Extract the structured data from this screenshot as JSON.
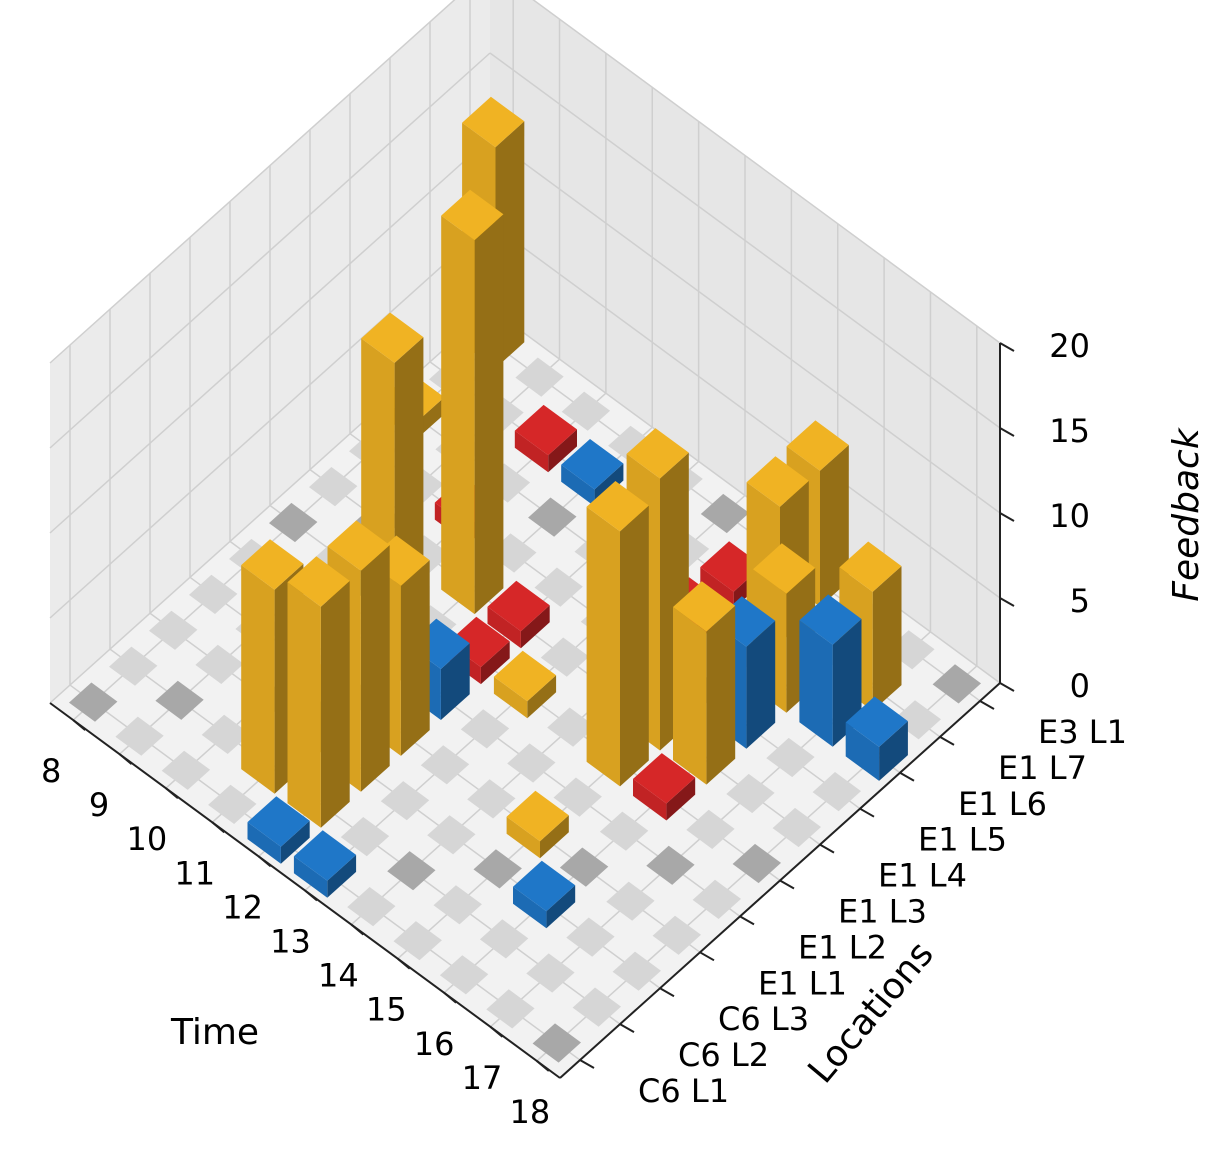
{
  "chart_data": {
    "type": "bar3d",
    "xlabel": "Time",
    "ylabel": "Locations",
    "zlabel": "Feedback",
    "x_ticks": [
      "8",
      "9",
      "10",
      "11",
      "12",
      "13",
      "14",
      "15",
      "16",
      "17",
      "18"
    ],
    "y_ticks": [
      "C6 L1",
      "C6 L2",
      "C6 L3",
      "E1 L1",
      "E1 L2",
      "E1 L3",
      "E1 L4",
      "E1 L5",
      "E1 L6",
      "E1 L7",
      "E3 L1"
    ],
    "z_ticks": [
      "0",
      "5",
      "10",
      "15",
      "20"
    ],
    "zlim": [
      0,
      20
    ],
    "grid": true,
    "colors": {
      "high": "#f0b323",
      "medium": "#1f77c8",
      "low": "#d62728",
      "zero_light": "#d6d6d6",
      "zero_dark": "#a8a8a8"
    },
    "bars": [
      {
        "time": 8,
        "location": "E3 L1",
        "value": 13,
        "category": "high"
      },
      {
        "time": 8,
        "location": "E1 L6",
        "value": 1,
        "category": "high"
      },
      {
        "time": 10,
        "location": "E1 L7",
        "value": 1,
        "category": "low"
      },
      {
        "time": 10,
        "location": "E1 L5",
        "value": 1,
        "category": "low"
      },
      {
        "time": 10,
        "location": "E1 L3",
        "value": 1,
        "category": "medium"
      },
      {
        "time": 11,
        "location": "E1 L7",
        "value": 1,
        "category": "medium"
      },
      {
        "time": 11,
        "location": "C6 L2",
        "value": 12,
        "category": "high"
      },
      {
        "time": 11,
        "location": "C6 L3",
        "value": 3,
        "category": "high"
      },
      {
        "time": 11,
        "location": "E1 L2",
        "value": 19,
        "category": "high"
      },
      {
        "time": 11,
        "location": "E1 L4",
        "value": 22,
        "category": "high"
      },
      {
        "time": 12,
        "location": "C6 L1",
        "value": 1,
        "category": "medium"
      },
      {
        "time": 12,
        "location": "C6 L2",
        "value": 13,
        "category": "high"
      },
      {
        "time": 12,
        "location": "C6 L3",
        "value": 13,
        "category": "high"
      },
      {
        "time": 12,
        "location": "E1 L1",
        "value": 10,
        "category": "high"
      },
      {
        "time": 12,
        "location": "E1 L2",
        "value": 3,
        "category": "medium"
      },
      {
        "time": 12,
        "location": "E1 L3",
        "value": 1,
        "category": "low"
      },
      {
        "time": 12,
        "location": "E1 L4",
        "value": 1,
        "category": "low"
      },
      {
        "time": 13,
        "location": "E1 L3",
        "value": 1,
        "category": "high"
      },
      {
        "time": 13,
        "location": "C6 L1",
        "value": 1,
        "category": "medium"
      },
      {
        "time": 14,
        "location": "E1 L5",
        "value": 3,
        "category": "high"
      },
      {
        "time": 14,
        "location": "E1 L6",
        "value": 1,
        "category": "low"
      },
      {
        "time": 14,
        "location": "E1 L7",
        "value": 1,
        "category": "low"
      },
      {
        "time": 15,
        "location": "E1 L7",
        "value": 8,
        "category": "high"
      },
      {
        "time": 15,
        "location": "E3 L1",
        "value": 8,
        "category": "high"
      },
      {
        "time": 15,
        "location": "E1 L4",
        "value": 16,
        "category": "high"
      },
      {
        "time": 15,
        "location": "E1 L3",
        "value": 15,
        "category": "high"
      },
      {
        "time": 15,
        "location": "E1 L1",
        "value": 1,
        "category": "high"
      },
      {
        "time": 16,
        "location": "E1 L6",
        "value": 7,
        "category": "high"
      },
      {
        "time": 16,
        "location": "E1 L5",
        "value": 6,
        "category": "medium"
      },
      {
        "time": 16,
        "location": "E1 L4",
        "value": 9,
        "category": "high"
      },
      {
        "time": 16,
        "location": "E1 L3",
        "value": 1,
        "category": "low"
      },
      {
        "time": 16,
        "location": "C6 L3",
        "value": 1,
        "category": "medium"
      },
      {
        "time": 17,
        "location": "E1 L6",
        "value": 6,
        "category": "medium"
      },
      {
        "time": 17,
        "location": "E1 L7",
        "value": 7,
        "category": "high"
      },
      {
        "time": 18,
        "location": "E1 L6",
        "value": 2,
        "category": "medium"
      }
    ]
  }
}
